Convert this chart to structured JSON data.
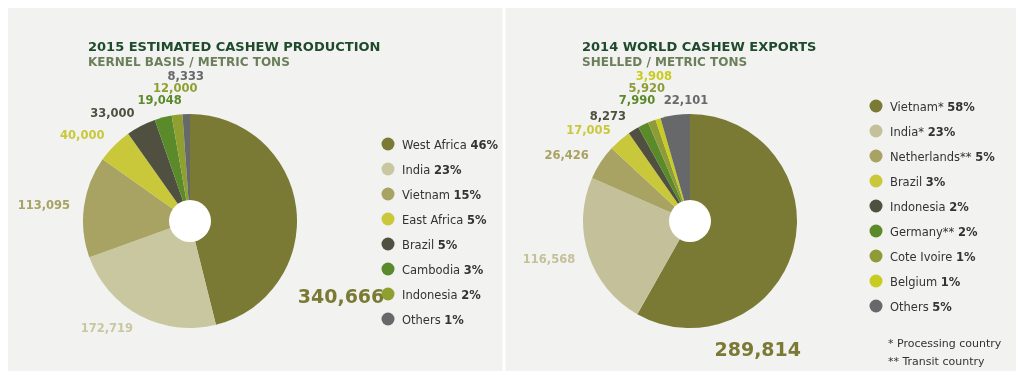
{
  "chart_data": [
    {
      "type": "pie",
      "title": "2015 ESTIMATED CASHEW PRODUCTION",
      "subtitle": "KERNEL BASIS / METRIC TONS",
      "categories": [
        "West Africa 46%",
        "India 23%",
        "Vietnam 15%",
        "East Africa 5%",
        "Brazil 5%",
        "Cambodia 3%",
        "Indonesia 2%",
        "Others 1%"
      ],
      "values": [
        340666,
        172719,
        113095,
        40000,
        33000,
        19048,
        12000,
        8333
      ],
      "value_labels": [
        "340,666",
        "172,719",
        "113,095",
        "40,000",
        "33,000",
        "19,048",
        "12,000",
        "8,333"
      ],
      "colors": [
        "#7a7a35",
        "#c9c7a0",
        "#a8a263",
        "#c9c83a",
        "#4f5040",
        "#5a8a2a",
        "#8fa030",
        "#66686a"
      ],
      "legend": "right"
    },
    {
      "type": "pie",
      "title": "2014 WORLD CASHEW EXPORTS",
      "subtitle": "SHELLED / METRIC TONS",
      "categories": [
        "Vietnam* 58%",
        "India* 23%",
        "Netherlands** 5%",
        "Brazil 3%",
        "Indonesia 2%",
        "Germany** 2%",
        "Cote Ivoire 1%",
        "Belgium 1%",
        "Others 5%"
      ],
      "values": [
        289814,
        116568,
        26426,
        17005,
        8273,
        7990,
        5920,
        3908,
        22101
      ],
      "value_labels": [
        "289,814",
        "116,568",
        "26,426",
        "17,005",
        "8,273",
        "7,990",
        "5,920",
        "3,908",
        "22,101"
      ],
      "colors": [
        "#7a7a35",
        "#c4c19a",
        "#a8a263",
        "#c9c83a",
        "#4f5040",
        "#5a8a2a",
        "#8f9a38",
        "#c8cc20",
        "#66686a"
      ],
      "legend": "right",
      "annotations": [
        "* Processing country",
        "** Transit country"
      ]
    }
  ]
}
